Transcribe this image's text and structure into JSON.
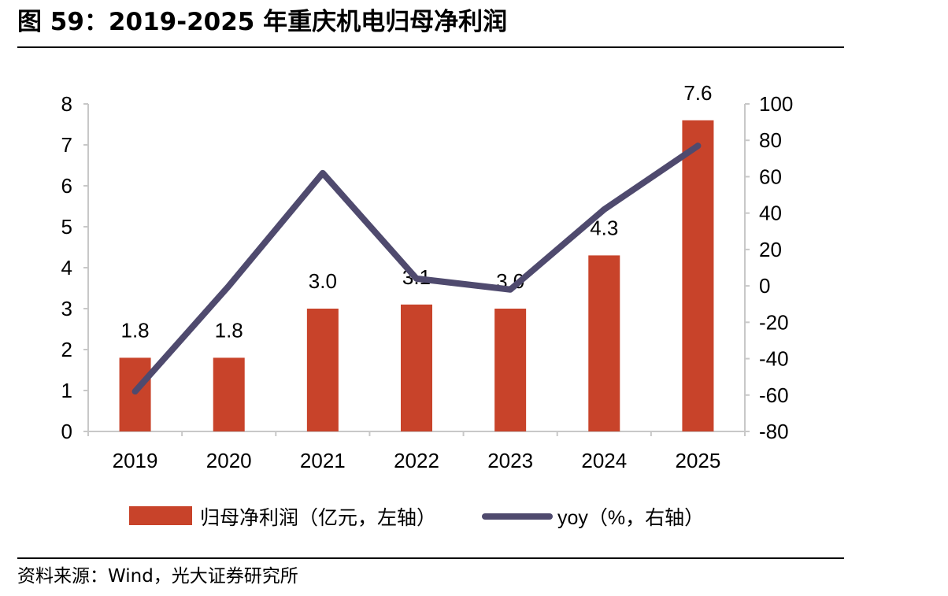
{
  "title": "图 59：2019-2025 年重庆机电归母净利润",
  "source": "资料来源：Wind，光大证券研究所",
  "colors": {
    "bar": "#c8432a",
    "line": "#4f4a6e",
    "axis": "#c8c8c8"
  },
  "chart_data": {
    "type": "bar",
    "categories": [
      "2019",
      "2020",
      "2021",
      "2022",
      "2023",
      "2024",
      "2025"
    ],
    "series": [
      {
        "name": "归母净利润（亿元，左轴）",
        "type": "bar",
        "axis": "left",
        "values": [
          1.8,
          1.8,
          3.0,
          3.1,
          3.0,
          4.3,
          7.6
        ],
        "labels": [
          "1.8",
          "1.8",
          "3.0",
          "3.1",
          "3.0",
          "4.3",
          "7.6"
        ]
      },
      {
        "name": "yoy（%，右轴）",
        "type": "line",
        "axis": "right",
        "values": [
          -58,
          0,
          62,
          4,
          -2,
          42,
          77
        ]
      }
    ],
    "y_left": {
      "lim": [
        0,
        8
      ],
      "ticks": [
        "0",
        "1",
        "2",
        "3",
        "4",
        "5",
        "6",
        "7",
        "8"
      ]
    },
    "y_right": {
      "lim": [
        -80,
        100
      ],
      "ticks": [
        "-80",
        "-60",
        "-40",
        "-20",
        "0",
        "20",
        "40",
        "60",
        "80",
        "100"
      ]
    },
    "legend": "bottom",
    "grid": false
  }
}
